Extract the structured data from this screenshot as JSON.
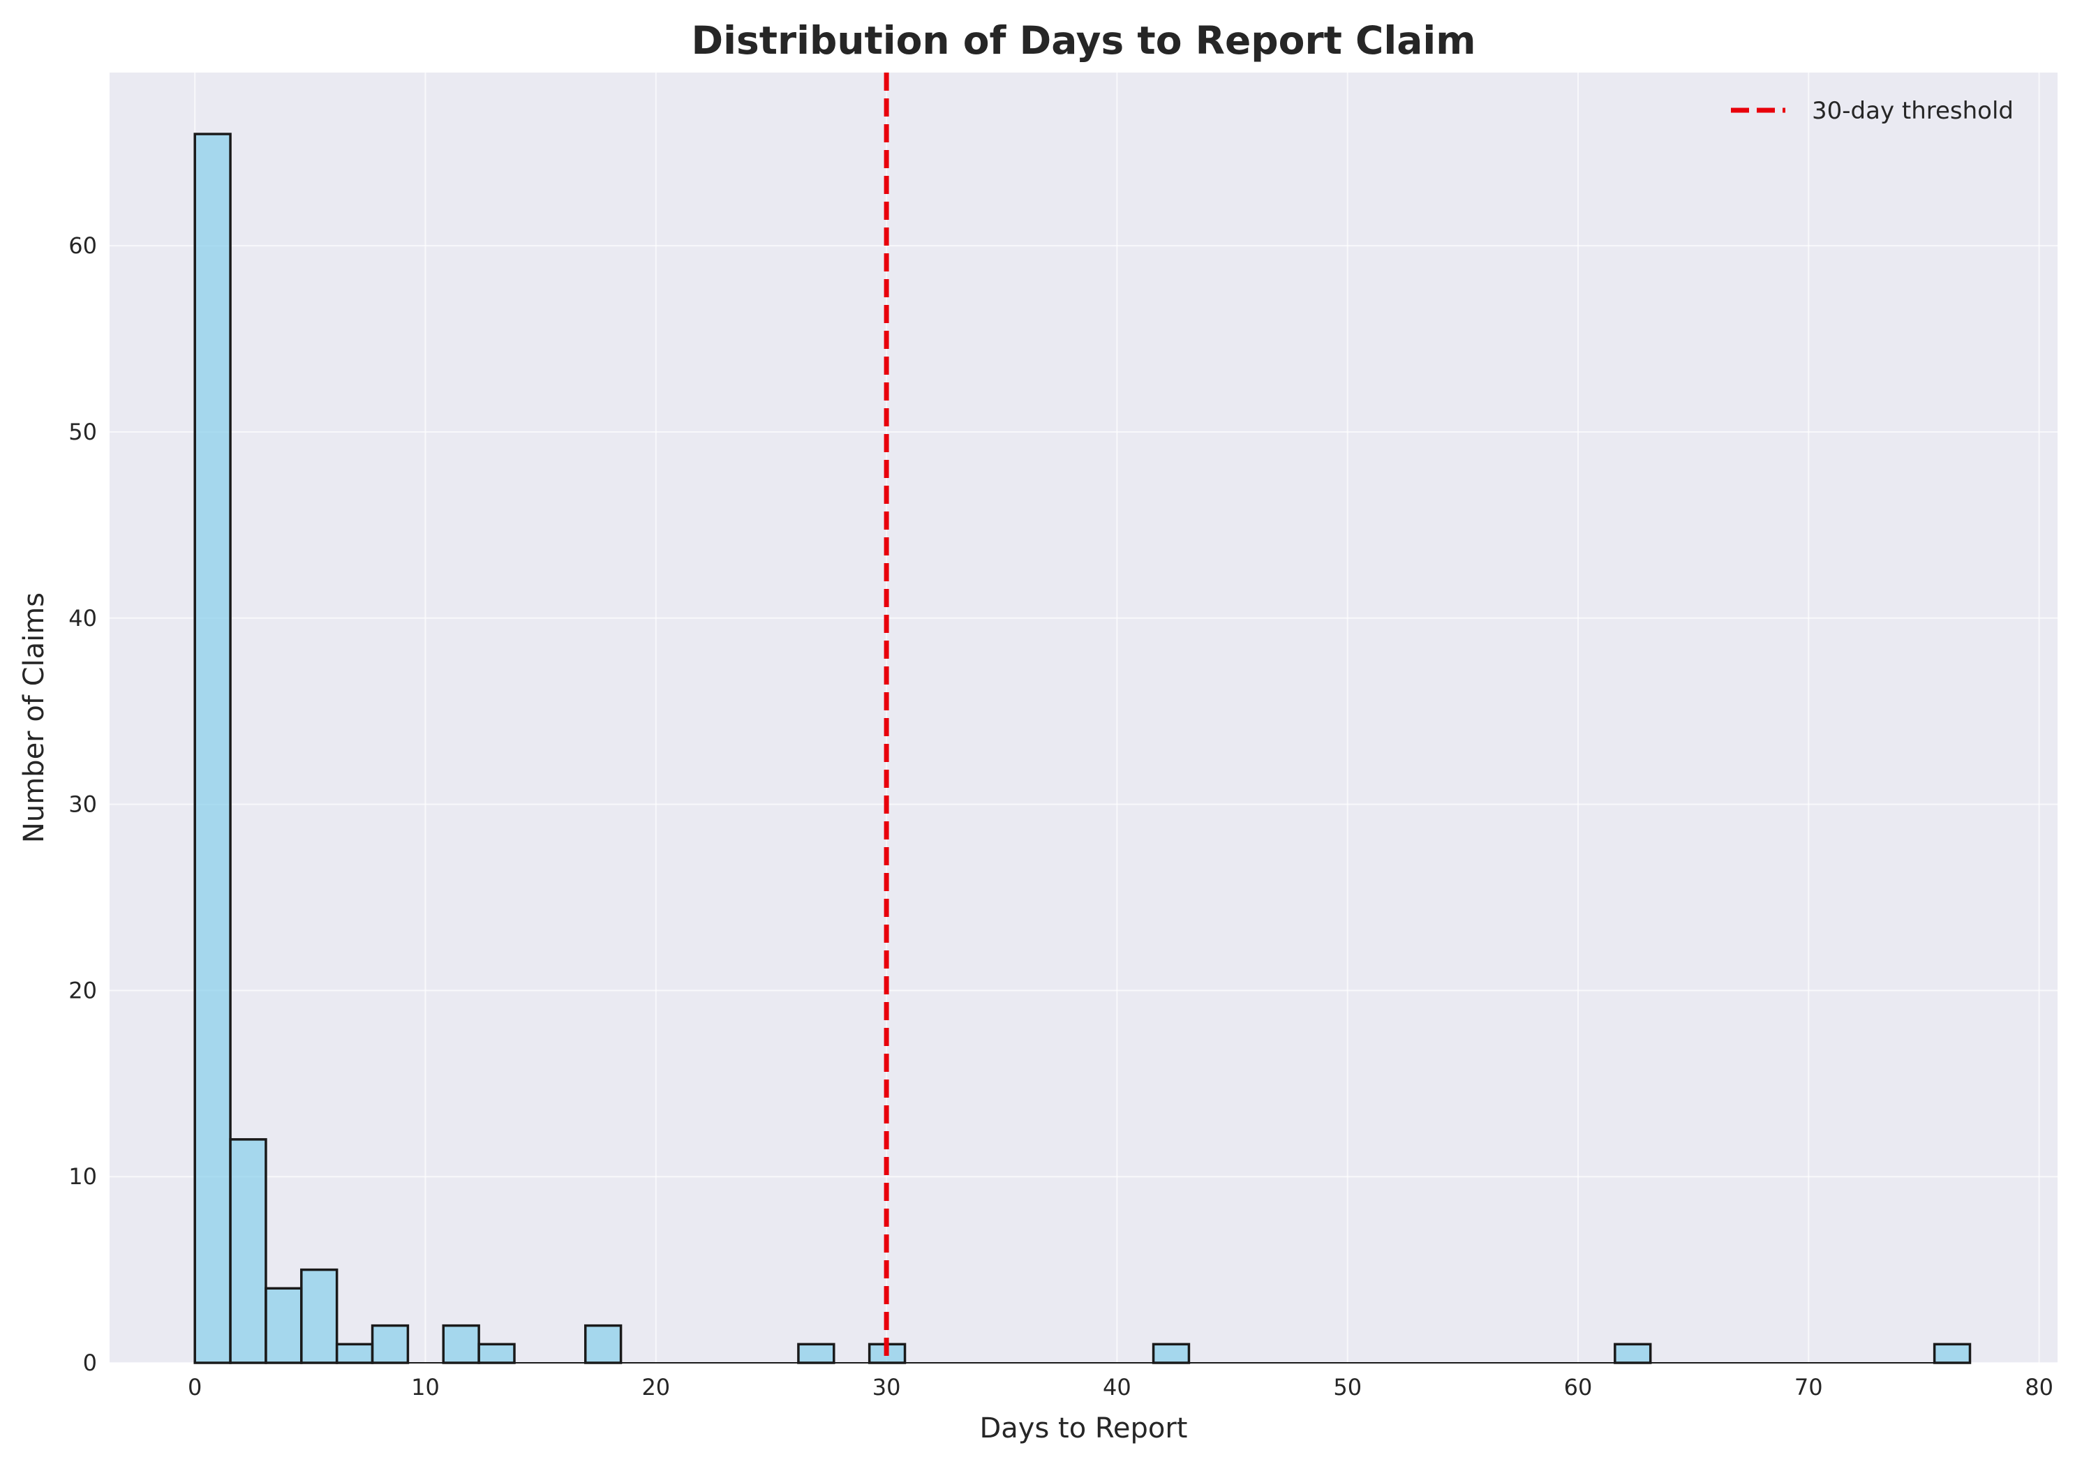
{
  "chart_data": {
    "type": "bar",
    "title": "Distribution of Days to Report Claim",
    "xlabel": "Days to Report",
    "ylabel": "Number of Claims",
    "xlim": [
      -3.7,
      80.8
    ],
    "ylim": [
      0,
      69.3
    ],
    "xticks": [
      0,
      10,
      20,
      30,
      40,
      50,
      60,
      70,
      80
    ],
    "yticks": [
      0,
      10,
      20,
      30,
      40,
      50,
      60
    ],
    "grid": true,
    "legend_position": "top-right",
    "bin_width": 1.54,
    "bins": [
      {
        "start": 0.0,
        "count": 66
      },
      {
        "start": 1.54,
        "count": 12
      },
      {
        "start": 3.08,
        "count": 4
      },
      {
        "start": 4.62,
        "count": 5
      },
      {
        "start": 6.16,
        "count": 1
      },
      {
        "start": 7.7,
        "count": 2
      },
      {
        "start": 10.78,
        "count": 2
      },
      {
        "start": 12.32,
        "count": 1
      },
      {
        "start": 16.94,
        "count": 2
      },
      {
        "start": 26.18,
        "count": 1
      },
      {
        "start": 29.26,
        "count": 1
      },
      {
        "start": 41.58,
        "count": 1
      },
      {
        "start": 61.6,
        "count": 1
      },
      {
        "start": 75.46,
        "count": 1
      }
    ],
    "reference_line": {
      "x": 30,
      "label": "30-day threshold",
      "color": "#e8000b",
      "style": "dashed"
    },
    "colors": {
      "background": "#eaeaf2",
      "bar_fill": "#87ceeb",
      "bar_edge": "#1a1a1a",
      "grid": "#ffffff"
    }
  }
}
